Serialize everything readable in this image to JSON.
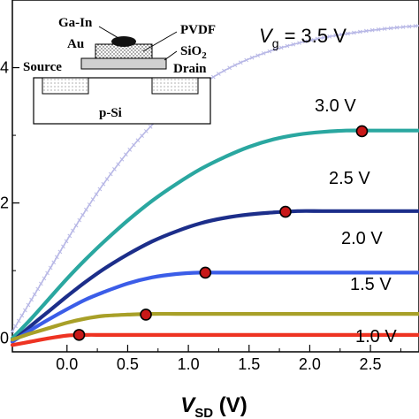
{
  "chart_data": {
    "type": "line",
    "xlabel": {
      "main": "V",
      "sub": "SD",
      "unit": " (V)"
    },
    "ylabel": "",
    "xlim": [
      -0.45,
      2.9
    ],
    "ylim": [
      -0.2,
      5.0
    ],
    "x_ticks": [
      {
        "value": 0.0,
        "label": "0.0"
      },
      {
        "value": 0.5,
        "label": "0.5"
      },
      {
        "value": 1.0,
        "label": "1.0"
      },
      {
        "value": 1.5,
        "label": "1.5"
      },
      {
        "value": 2.0,
        "label": "2.0"
      },
      {
        "value": 2.5,
        "label": "2.5"
      }
    ],
    "y_ticks": [
      {
        "value": 0,
        "label": "0"
      },
      {
        "value": 2,
        "label": "2"
      },
      {
        "value": 4,
        "label": "4"
      }
    ],
    "series": [
      {
        "name": "V_g = 3.5 V",
        "color": "#b8b8e6",
        "style": "crosses",
        "x": [
          -0.45,
          -0.3,
          -0.15,
          0.0,
          0.15,
          0.3,
          0.5,
          0.7,
          0.9,
          1.1,
          1.3,
          1.5,
          1.7,
          1.9,
          2.1,
          2.3,
          2.5,
          2.7,
          2.9
        ],
        "y": [
          0.1,
          0.55,
          1.0,
          1.45,
          1.88,
          2.28,
          2.75,
          3.15,
          3.48,
          3.74,
          3.96,
          4.13,
          4.26,
          4.36,
          4.44,
          4.5,
          4.55,
          4.59,
          4.62
        ]
      },
      {
        "name": "3.0 V",
        "color": "#2aa7a0",
        "x": [
          -0.45,
          -0.3,
          -0.15,
          0.0,
          0.15,
          0.3,
          0.5,
          0.7,
          0.9,
          1.1,
          1.3,
          1.5,
          1.7,
          1.9,
          2.1,
          2.3,
          2.5,
          2.7,
          2.9
        ],
        "y": [
          0.0,
          0.28,
          0.58,
          0.88,
          1.16,
          1.42,
          1.74,
          2.03,
          2.28,
          2.5,
          2.68,
          2.83,
          2.94,
          3.01,
          3.05,
          3.07,
          3.07,
          3.07,
          3.07
        ]
      },
      {
        "name": "2.5 V",
        "color": "#1c2e8a",
        "x": [
          -0.45,
          -0.3,
          -0.15,
          0.0,
          0.15,
          0.3,
          0.5,
          0.7,
          0.9,
          1.1,
          1.3,
          1.5,
          1.7,
          1.9,
          2.1,
          2.3,
          2.5,
          2.7,
          2.9
        ],
        "y": [
          -0.05,
          0.18,
          0.4,
          0.62,
          0.83,
          1.02,
          1.24,
          1.43,
          1.58,
          1.7,
          1.78,
          1.83,
          1.86,
          1.88,
          1.88,
          1.88,
          1.88,
          1.88,
          1.88
        ]
      },
      {
        "name": "2.0 V",
        "color": "#3b5de8",
        "x": [
          -0.45,
          -0.3,
          -0.15,
          0.0,
          0.15,
          0.3,
          0.5,
          0.7,
          0.9,
          1.1,
          1.3,
          1.5,
          1.7,
          1.9,
          2.1,
          2.3,
          2.5,
          2.7,
          2.9
        ],
        "y": [
          -0.05,
          0.12,
          0.28,
          0.43,
          0.57,
          0.68,
          0.81,
          0.9,
          0.95,
          0.97,
          0.97,
          0.97,
          0.97,
          0.97,
          0.97,
          0.97,
          0.97,
          0.97,
          0.97
        ]
      },
      {
        "name": "1.5 V",
        "color": "#a8a028",
        "x": [
          -0.45,
          -0.3,
          -0.15,
          0.0,
          0.15,
          0.3,
          0.5,
          0.7,
          0.9,
          1.1,
          1.3,
          1.5,
          1.7,
          1.9,
          2.1,
          2.3,
          2.5,
          2.7,
          2.9
        ],
        "y": [
          -0.02,
          0.07,
          0.15,
          0.23,
          0.29,
          0.33,
          0.35,
          0.36,
          0.36,
          0.36,
          0.36,
          0.36,
          0.36,
          0.36,
          0.36,
          0.36,
          0.36,
          0.36,
          0.36
        ]
      },
      {
        "name": "1.0 V",
        "color": "#ee3322",
        "x": [
          -0.45,
          -0.3,
          -0.15,
          0.0,
          0.15,
          0.3,
          0.5,
          0.7,
          0.9,
          1.1,
          1.3,
          1.5,
          1.7,
          1.9,
          2.1,
          2.3,
          2.5,
          2.7,
          2.9
        ],
        "y": [
          -0.1,
          -0.05,
          0.0,
          0.04,
          0.05,
          0.05,
          0.05,
          0.05,
          0.05,
          0.05,
          0.05,
          0.05,
          0.05,
          0.05,
          0.05,
          0.05,
          0.05,
          0.05,
          0.05
        ]
      }
    ],
    "saturation_markers": [
      {
        "series": "3.0 V",
        "x": 2.43,
        "y": 3.06
      },
      {
        "series": "2.5 V",
        "x": 1.8,
        "y": 1.87
      },
      {
        "series": "2.0 V",
        "x": 1.14,
        "y": 0.97
      },
      {
        "series": "1.5 V",
        "x": 0.65,
        "y": 0.35
      },
      {
        "series": "1.0 V",
        "x": 0.1,
        "y": 0.05
      }
    ],
    "curve_labels": {
      "vg_main": "V",
      "vg_sub": "g",
      "vg_value": " = 3.5 V",
      "v30": "3.0 V",
      "v25": "2.5 V",
      "v20": "2.0 V",
      "v15": "1.5 V",
      "v10": "1.0 V"
    },
    "inset": {
      "ga_in": "Ga-In",
      "au": "Au",
      "pvdf": "PVDF",
      "sio2_main": "SiO",
      "sio2_sub": "2",
      "source": "Source",
      "drain": "Drain",
      "p_si": "p-Si"
    }
  }
}
